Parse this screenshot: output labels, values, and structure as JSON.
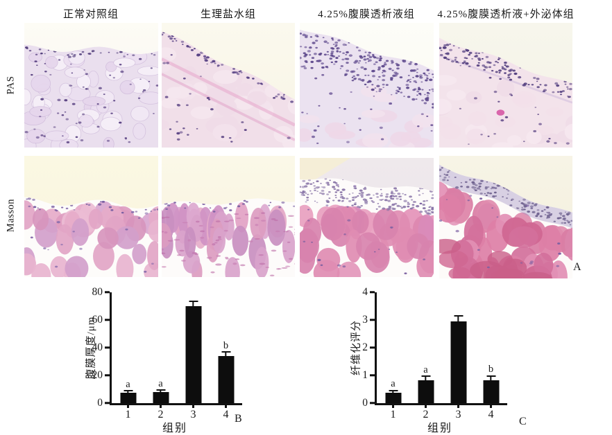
{
  "figure": {
    "column_headers": [
      "正常对照组",
      "生理盐水组",
      "4.25%腹膜透析液组",
      "4.25%腹膜透析液+外泌体组"
    ],
    "row_labels": [
      "PAS",
      "Masson"
    ],
    "panel_letter_a": "A",
    "panel_letter_b": "B",
    "panel_letter_c": "C"
  },
  "micrographs": [
    {
      "stain": "PAS",
      "group": "正常对照组"
    },
    {
      "stain": "PAS",
      "group": "生理盐水组"
    },
    {
      "stain": "PAS",
      "group": "4.25%腹膜透析液组"
    },
    {
      "stain": "PAS",
      "group": "4.25%腹膜透析液+外泌体组"
    },
    {
      "stain": "Masson",
      "group": "正常对照组"
    },
    {
      "stain": "Masson",
      "group": "生理盐水组"
    },
    {
      "stain": "Masson",
      "group": "4.25%腹膜透析液组"
    },
    {
      "stain": "Masson",
      "group": "4.25%腹膜透析液+外泌体组"
    }
  ],
  "chart_data": [
    {
      "type": "bar",
      "panel": "B",
      "categories": [
        "1",
        "2",
        "3",
        "4"
      ],
      "values": [
        7.5,
        8,
        70,
        34
      ],
      "errors": [
        0.8,
        0.8,
        3,
        2.5
      ],
      "sig_letters": [
        "a",
        "a",
        "",
        "b"
      ],
      "xlabel": "组别",
      "ylabel": "腹膜厚度/μm",
      "ylim": [
        0,
        80
      ],
      "yticks": [
        0,
        20,
        40,
        60,
        80
      ],
      "bar_color": "#0d0d0d",
      "grid": false,
      "legend": "none"
    },
    {
      "type": "bar",
      "panel": "C",
      "categories": [
        "1",
        "2",
        "3",
        "4"
      ],
      "values": [
        0.38,
        0.82,
        2.95,
        0.82
      ],
      "errors": [
        0.05,
        0.12,
        0.17,
        0.14
      ],
      "sig_letters": [
        "a",
        "a",
        "",
        "b"
      ],
      "xlabel": "组别",
      "ylabel": "纤维化评分",
      "ylim": [
        0,
        4
      ],
      "yticks": [
        0,
        1,
        2,
        3,
        4
      ],
      "bar_color": "#0d0d0d",
      "grid": false,
      "legend": "none"
    }
  ]
}
